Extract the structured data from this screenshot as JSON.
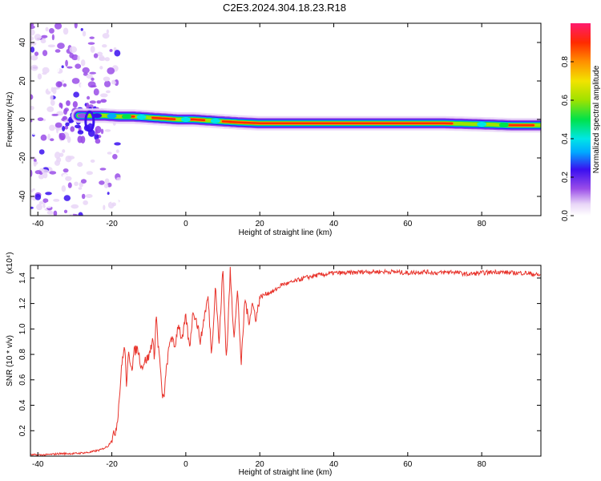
{
  "figure": {
    "title": "C2E3.2024.304.18.23.R18"
  },
  "chart_data": [
    {
      "type": "heatmap",
      "xlabel": "Height of straight line (km)",
      "ylabel": "Frequency (Hz)",
      "xlim": [
        -42,
        96
      ],
      "ylim": [
        -50,
        50
      ],
      "xticks": [
        -40,
        -20,
        0,
        20,
        40,
        60,
        80
      ],
      "yticks": [
        -40,
        -20,
        0,
        20,
        40
      ],
      "colorbar": {
        "label": "Normalized spectral amplitude",
        "range": [
          0,
          1
        ],
        "ticks": [
          0.0,
          0.2,
          0.4,
          0.6,
          0.8
        ],
        "colors": [
          "#ffffff",
          "#e9d6f7",
          "#9a4de8",
          "#3a0ff0",
          "#00aaff",
          "#00e6e6",
          "#00e24a",
          "#9ee200",
          "#f2e300",
          "#ff9000",
          "#ff2a00",
          "#ff1a6e"
        ]
      },
      "ridge": [
        {
          "x": -30,
          "y": 2
        },
        {
          "x": -26,
          "y": 2
        },
        {
          "x": -22,
          "y": 2
        },
        {
          "x": -18,
          "y": 1.5
        },
        {
          "x": -14,
          "y": 1.5
        },
        {
          "x": -10,
          "y": 1
        },
        {
          "x": -6,
          "y": 0.5
        },
        {
          "x": -2,
          "y": 0
        },
        {
          "x": 2,
          "y": 0
        },
        {
          "x": 6,
          "y": -0.5
        },
        {
          "x": 10,
          "y": -1
        },
        {
          "x": 14,
          "y": -1.5
        },
        {
          "x": 20,
          "y": -2
        },
        {
          "x": 30,
          "y": -2
        },
        {
          "x": 40,
          "y": -2
        },
        {
          "x": 50,
          "y": -2
        },
        {
          "x": 60,
          "y": -2
        },
        {
          "x": 70,
          "y": -2
        },
        {
          "x": 80,
          "y": -2.5
        },
        {
          "x": 88,
          "y": -3
        },
        {
          "x": 96,
          "y": -3
        }
      ],
      "ridge_amplitude": [
        {
          "x": -28,
          "a": 0.35
        },
        {
          "x": -24,
          "a": 0.5
        },
        {
          "x": -20,
          "a": 0.6
        },
        {
          "x": -16,
          "a": 0.85
        },
        {
          "x": -12,
          "a": 0.7
        },
        {
          "x": -8,
          "a": 0.95
        },
        {
          "x": -4,
          "a": 0.9
        },
        {
          "x": 0,
          "a": 0.8
        },
        {
          "x": 4,
          "a": 0.95
        },
        {
          "x": 8,
          "a": 0.75
        },
        {
          "x": 12,
          "a": 0.9
        },
        {
          "x": 20,
          "a": 0.95
        },
        {
          "x": 40,
          "a": 0.98
        },
        {
          "x": 60,
          "a": 0.98
        },
        {
          "x": 74,
          "a": 0.95
        },
        {
          "x": 80,
          "a": 0.7
        },
        {
          "x": 86,
          "a": 0.85
        },
        {
          "x": 92,
          "a": 0.95
        }
      ]
    },
    {
      "type": "line",
      "xlabel": "Height of straight line (km)",
      "ylabel": "SNR (10 * v/v)",
      "y_multiplier": "(x10⁴)",
      "xlim": [
        -42,
        96
      ],
      "ylim": [
        0,
        1.5
      ],
      "xticks": [
        -40,
        -20,
        0,
        20,
        40,
        60,
        80
      ],
      "yticks": [
        0.2,
        0.4,
        0.6,
        0.8,
        1.0,
        1.2,
        1.4
      ],
      "series": [
        {
          "color": "#e8342c",
          "x": [
            -42,
            -38,
            -34,
            -30,
            -26,
            -23,
            -21,
            -20,
            -19,
            -18.5,
            -18,
            -17.5,
            -17,
            -16.5,
            -16,
            -15.5,
            -15,
            -14.5,
            -14,
            -13,
            -12,
            -11,
            -10,
            -9,
            -8.5,
            -8,
            -7.5,
            -7,
            -6.5,
            -6,
            -5.5,
            -5,
            -4,
            -3,
            -2,
            -1,
            0,
            1,
            2,
            3,
            4,
            5,
            6,
            7,
            8,
            9,
            10,
            11,
            12,
            13,
            14,
            15,
            16,
            17,
            18,
            19,
            20,
            22,
            24,
            26,
            28,
            30,
            32,
            35,
            38,
            40,
            44,
            48,
            52,
            56,
            60,
            64,
            68,
            72,
            76,
            80,
            84,
            88,
            92,
            96
          ],
          "y": [
            0.01,
            0.01,
            0.02,
            0.02,
            0.03,
            0.05,
            0.08,
            0.13,
            0.2,
            0.28,
            0.45,
            0.65,
            0.8,
            0.85,
            0.55,
            0.8,
            0.75,
            0.7,
            0.82,
            0.85,
            0.7,
            0.75,
            0.78,
            0.92,
            0.78,
            1.12,
            0.88,
            0.75,
            0.5,
            0.45,
            0.6,
            0.75,
            0.95,
            0.85,
            1.05,
            0.9,
            1.1,
            0.85,
            1.15,
            1.05,
            0.9,
            1.1,
            1.25,
            0.8,
            1.35,
            0.88,
            1.48,
            0.75,
            1.45,
            0.95,
            1.3,
            0.72,
            1.25,
            1.05,
            1.2,
            1.08,
            1.25,
            1.28,
            1.3,
            1.35,
            1.36,
            1.38,
            1.4,
            1.42,
            1.43,
            1.44,
            1.44,
            1.45,
            1.45,
            1.45,
            1.44,
            1.45,
            1.44,
            1.45,
            1.43,
            1.44,
            1.45,
            1.44,
            1.44,
            1.42
          ]
        }
      ]
    }
  ]
}
